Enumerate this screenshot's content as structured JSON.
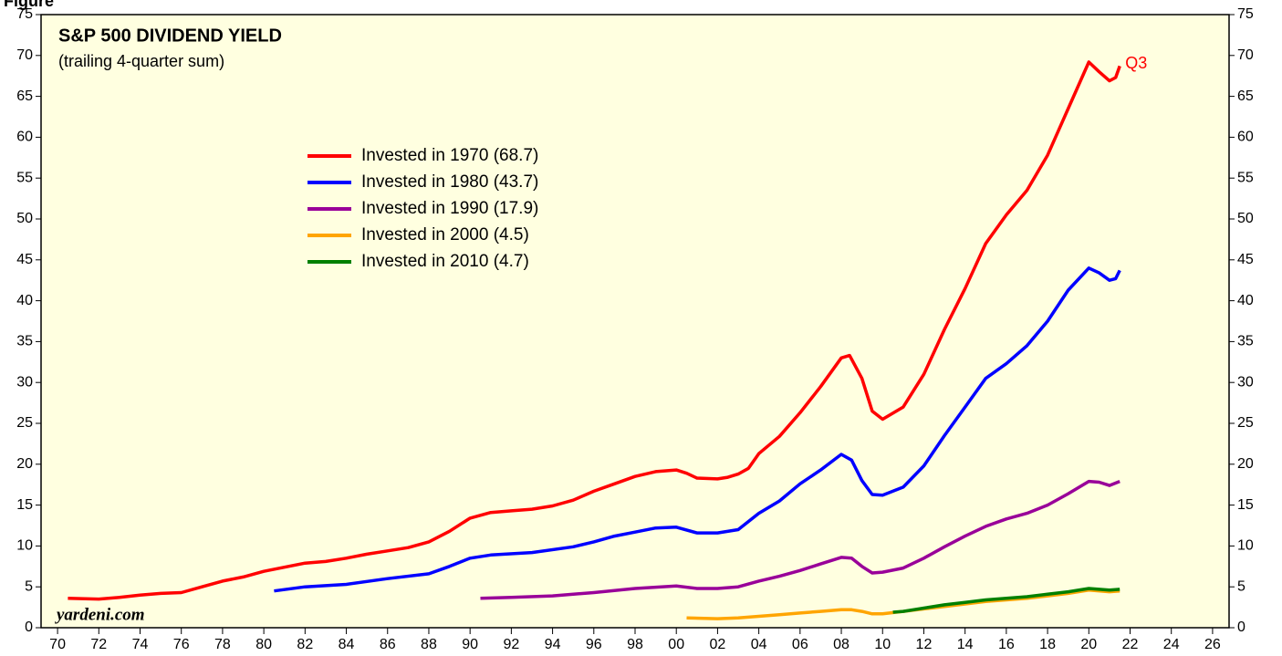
{
  "chart_data": {
    "type": "line",
    "figure_label": "Figure",
    "title": "S&P 500 DIVIDEND YIELD",
    "subtitle": "(trailing 4-quarter sum)",
    "annotation": "Q3",
    "source": "yardeni.com",
    "xlim": [
      1969.2,
      2026.8
    ],
    "xticks": [
      {
        "value": 1970,
        "label": "70"
      },
      {
        "value": 1972,
        "label": "72"
      },
      {
        "value": 1974,
        "label": "74"
      },
      {
        "value": 1976,
        "label": "76"
      },
      {
        "value": 1978,
        "label": "78"
      },
      {
        "value": 1980,
        "label": "80"
      },
      {
        "value": 1982,
        "label": "82"
      },
      {
        "value": 1984,
        "label": "84"
      },
      {
        "value": 1986,
        "label": "86"
      },
      {
        "value": 1988,
        "label": "88"
      },
      {
        "value": 1990,
        "label": "90"
      },
      {
        "value": 1992,
        "label": "92"
      },
      {
        "value": 1994,
        "label": "94"
      },
      {
        "value": 1996,
        "label": "96"
      },
      {
        "value": 1998,
        "label": "98"
      },
      {
        "value": 2000,
        "label": "00"
      },
      {
        "value": 2002,
        "label": "02"
      },
      {
        "value": 2004,
        "label": "04"
      },
      {
        "value": 2006,
        "label": "06"
      },
      {
        "value": 2008,
        "label": "08"
      },
      {
        "value": 2010,
        "label": "10"
      },
      {
        "value": 2012,
        "label": "12"
      },
      {
        "value": 2014,
        "label": "14"
      },
      {
        "value": 2016,
        "label": "16"
      },
      {
        "value": 2018,
        "label": "18"
      },
      {
        "value": 2020,
        "label": "20"
      },
      {
        "value": 2022,
        "label": "22"
      },
      {
        "value": 2024,
        "label": "24"
      },
      {
        "value": 2026,
        "label": "26"
      }
    ],
    "ylim": [
      0,
      75
    ],
    "yticks": [
      0,
      5,
      10,
      15,
      20,
      25,
      30,
      35,
      40,
      45,
      50,
      55,
      60,
      65,
      70,
      75
    ],
    "legend": "upper-left",
    "background": "#ffffe0",
    "series": [
      {
        "name": "Invested in 1970 (68.7)",
        "color": "#ff0000",
        "x": [
          1970.5,
          1972,
          1973,
          1974,
          1975,
          1976,
          1977,
          1978,
          1979,
          1980,
          1981,
          1982,
          1983,
          1984,
          1985,
          1986,
          1987,
          1988,
          1989,
          1990,
          1991,
          1992,
          1993,
          1994,
          1995,
          1996,
          1997,
          1998,
          1999,
          2000,
          2000.5,
          2001,
          2002,
          2002.5,
          2003,
          2003.5,
          2004,
          2005,
          2006,
          2007,
          2008,
          2008.4,
          2009,
          2009.5,
          2010,
          2011,
          2012,
          2013,
          2014,
          2015,
          2016,
          2017,
          2018,
          2019,
          2020,
          2020.5,
          2021,
          2021.3,
          2021.5
        ],
        "values": [
          3.6,
          3.5,
          3.7,
          4.0,
          4.2,
          4.3,
          5.0,
          5.7,
          6.2,
          6.9,
          7.4,
          7.9,
          8.1,
          8.5,
          9.0,
          9.4,
          9.8,
          10.5,
          11.8,
          13.4,
          14.1,
          14.3,
          14.5,
          14.9,
          15.6,
          16.7,
          17.6,
          18.5,
          19.1,
          19.3,
          18.9,
          18.3,
          18.2,
          18.4,
          18.8,
          19.5,
          21.3,
          23.4,
          26.3,
          29.5,
          33.0,
          33.3,
          30.5,
          26.5,
          25.5,
          27.0,
          31.0,
          36.5,
          41.5,
          47.0,
          50.5,
          53.5,
          57.8,
          63.5,
          69.2,
          68.0,
          66.9,
          67.3,
          68.7
        ]
      },
      {
        "name": "Invested in 1980 (43.7)",
        "color": "#0000ff",
        "x": [
          1980.5,
          1982,
          1984,
          1986,
          1988,
          1989,
          1990,
          1991,
          1993,
          1995,
          1996,
          1997,
          1998,
          1999,
          2000,
          2001,
          2002,
          2003,
          2004,
          2005,
          2006,
          2007,
          2008,
          2008.5,
          2009,
          2009.5,
          2010,
          2011,
          2012,
          2013,
          2014,
          2015,
          2016,
          2017,
          2018,
          2019,
          2020,
          2020.5,
          2021,
          2021.3,
          2021.5
        ],
        "values": [
          4.5,
          5.0,
          5.3,
          6.0,
          6.6,
          7.5,
          8.5,
          8.9,
          9.2,
          9.9,
          10.5,
          11.2,
          11.7,
          12.2,
          12.3,
          11.6,
          11.6,
          12.0,
          14.0,
          15.5,
          17.6,
          19.3,
          21.2,
          20.5,
          18.0,
          16.3,
          16.2,
          17.2,
          19.8,
          23.5,
          27.0,
          30.5,
          32.3,
          34.5,
          37.5,
          41.3,
          44.0,
          43.4,
          42.5,
          42.7,
          43.7
        ]
      },
      {
        "name": "Invested in 1990 (17.9)",
        "color": "#990099",
        "x": [
          1990.5,
          1992,
          1994,
          1996,
          1998,
          2000,
          2001,
          2002,
          2003,
          2004,
          2005,
          2006,
          2007,
          2008,
          2008.5,
          2009,
          2009.5,
          2010,
          2011,
          2012,
          2013,
          2014,
          2015,
          2016,
          2017,
          2018,
          2019,
          2020,
          2020.5,
          2021,
          2021.5
        ],
        "values": [
          3.6,
          3.7,
          3.9,
          4.3,
          4.8,
          5.1,
          4.8,
          4.8,
          5.0,
          5.7,
          6.3,
          7.0,
          7.8,
          8.6,
          8.5,
          7.5,
          6.7,
          6.8,
          7.3,
          8.5,
          9.9,
          11.2,
          12.4,
          13.3,
          14.0,
          15.0,
          16.4,
          17.9,
          17.8,
          17.4,
          17.9
        ]
      },
      {
        "name": "Invested in 2000 (4.5)",
        "color": "#ffa500",
        "x": [
          2000.5,
          2002,
          2003,
          2004,
          2005,
          2006,
          2007,
          2008,
          2008.5,
          2009,
          2009.5,
          2010,
          2011,
          2012,
          2013,
          2014,
          2015,
          2016,
          2017,
          2018,
          2019,
          2020,
          2021,
          2021.5
        ],
        "values": [
          1.2,
          1.1,
          1.2,
          1.4,
          1.6,
          1.8,
          2.0,
          2.2,
          2.2,
          2.0,
          1.7,
          1.7,
          2.0,
          2.3,
          2.6,
          2.9,
          3.2,
          3.4,
          3.6,
          3.9,
          4.2,
          4.6,
          4.4,
          4.5
        ]
      },
      {
        "name": "Invested in 2010 (4.7)",
        "color": "#008000",
        "x": [
          2010.5,
          2011,
          2012,
          2013,
          2014,
          2015,
          2016,
          2017,
          2018,
          2019,
          2020,
          2021,
          2021.5
        ],
        "values": [
          1.9,
          2.0,
          2.4,
          2.8,
          3.1,
          3.4,
          3.6,
          3.8,
          4.1,
          4.4,
          4.8,
          4.6,
          4.7
        ]
      }
    ]
  }
}
